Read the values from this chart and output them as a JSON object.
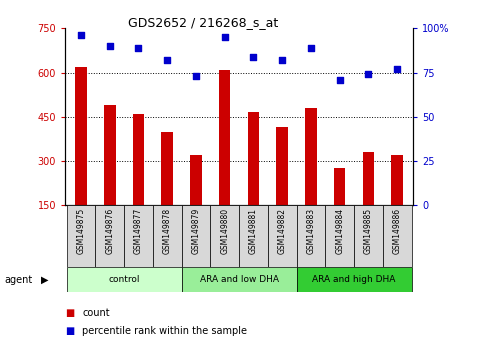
{
  "title": "GDS2652 / 216268_s_at",
  "samples": [
    "GSM149875",
    "GSM149876",
    "GSM149877",
    "GSM149878",
    "GSM149879",
    "GSM149880",
    "GSM149881",
    "GSM149882",
    "GSM149883",
    "GSM149884",
    "GSM149885",
    "GSM149886"
  ],
  "bar_values": [
    620,
    490,
    460,
    400,
    320,
    610,
    465,
    415,
    480,
    275,
    330,
    320
  ],
  "dot_values": [
    96,
    90,
    89,
    82,
    73,
    95,
    84,
    82,
    89,
    71,
    74,
    77
  ],
  "bar_color": "#cc0000",
  "dot_color": "#0000cc",
  "ylim_left": [
    150,
    750
  ],
  "ylim_right": [
    0,
    100
  ],
  "yticks_left": [
    150,
    300,
    450,
    600,
    750
  ],
  "yticks_right": [
    0,
    25,
    50,
    75,
    100
  ],
  "hlines": [
    300,
    450,
    600
  ],
  "groups": [
    {
      "label": "control",
      "start": 0,
      "end": 4,
      "color": "#ccffcc"
    },
    {
      "label": "ARA and low DHA",
      "start": 4,
      "end": 8,
      "color": "#99ee99"
    },
    {
      "label": "ARA and high DHA",
      "start": 8,
      "end": 12,
      "color": "#33cc33"
    }
  ],
  "legend_count_color": "#cc0000",
  "legend_dot_color": "#0000cc",
  "agent_label": "agent",
  "background_color": "#ffffff",
  "plot_bg_color": "#ffffff",
  "right_axis_label_color": "#0000cc",
  "left_axis_label_color": "#cc0000",
  "label_bg_color": "#d8d8d8",
  "bar_width": 0.4,
  "dot_size": 18
}
